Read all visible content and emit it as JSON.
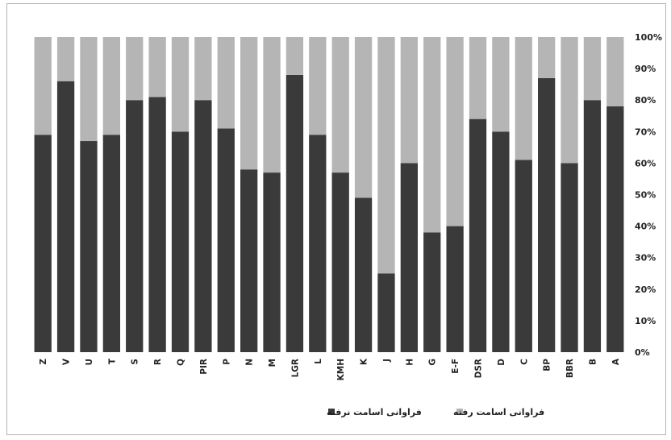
{
  "chart_data": {
    "type": "bar",
    "stacked": true,
    "percent": true,
    "categories": [
      "Z",
      "V",
      "U",
      "T",
      "S",
      "R",
      "Q",
      "PIR",
      "P",
      "N",
      "M",
      "LGR",
      "L",
      "KMH",
      "K",
      "J",
      "H",
      "G",
      "E-F",
      "DSR",
      "D",
      "C",
      "BP",
      "BBR",
      "B",
      "A"
    ],
    "series": [
      {
        "name": "فراوانی اسامت نرفته",
        "color": "#3a3a3a",
        "values": [
          69,
          86,
          67,
          69,
          80,
          81,
          70,
          80,
          71,
          58,
          57,
          88,
          69,
          57,
          49,
          25,
          60,
          38,
          40,
          74,
          70,
          61,
          87,
          60,
          80,
          78
        ]
      },
      {
        "name": "فراوانی اسامت رفته",
        "color": "#b5b5b5",
        "values": [
          31,
          14,
          33,
          31,
          20,
          19,
          30,
          20,
          29,
          42,
          43,
          12,
          31,
          43,
          51,
          75,
          40,
          62,
          60,
          26,
          30,
          39,
          13,
          40,
          20,
          22
        ]
      }
    ],
    "yticks": [
      "0%",
      "10%",
      "20%",
      "30%",
      "40%",
      "50%",
      "60%",
      "70%",
      "80%",
      "90%",
      "100%"
    ],
    "ylim": [
      0,
      100
    ],
    "grid": false,
    "legend_position": "bottom"
  }
}
